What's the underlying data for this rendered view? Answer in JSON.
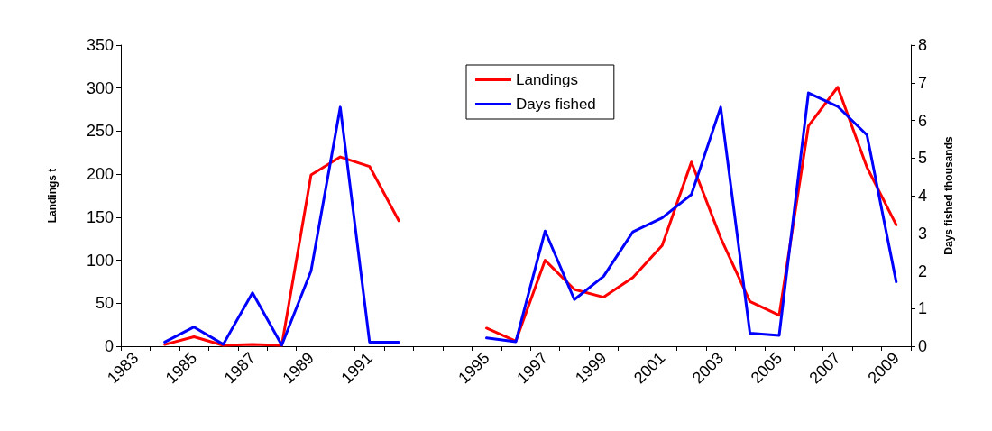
{
  "chart_data": {
    "type": "line",
    "ylabel": "Landings t",
    "y2label": "Days fished thousands",
    "categories": [
      "1983",
      null,
      "1985",
      null,
      "1987",
      null,
      "1989",
      null,
      "1991",
      null,
      null,
      null,
      "1995",
      null,
      "1997",
      null,
      "1999",
      null,
      "2001",
      null,
      "2003",
      null,
      "2005",
      null,
      "2007",
      null,
      "2009"
    ],
    "series": [
      {
        "name": "Landings",
        "color": "#ff0000",
        "values": [
          null,
          2,
          11,
          1,
          2,
          1,
          199,
          220,
          209,
          146,
          null,
          null,
          21,
          6,
          100,
          66,
          57,
          80,
          117,
          214,
          126,
          52,
          36,
          256,
          301,
          208,
          141
        ]
      },
      {
        "name": "Days fished",
        "color": "#0000ff",
        "axis": "y2",
        "values": [
          null,
          0.11,
          0.51,
          0.05,
          1.42,
          0.03,
          2.0,
          6.35,
          0.11,
          0.11,
          null,
          null,
          0.22,
          0.12,
          3.06,
          1.24,
          1.86,
          3.04,
          3.41,
          4.03,
          6.35,
          0.35,
          0.29,
          6.73,
          6.37,
          5.61,
          1.71
        ]
      }
    ],
    "ylim": [
      0,
      350
    ],
    "yticks": [
      0,
      50,
      100,
      150,
      200,
      250,
      300,
      350
    ],
    "y2lim": [
      0,
      8
    ],
    "y2ticks": [
      0,
      1,
      2,
      3,
      4,
      5,
      6,
      7,
      8
    ],
    "grid": false,
    "legend": "top",
    "marker": "none",
    "line_style": "solid"
  }
}
